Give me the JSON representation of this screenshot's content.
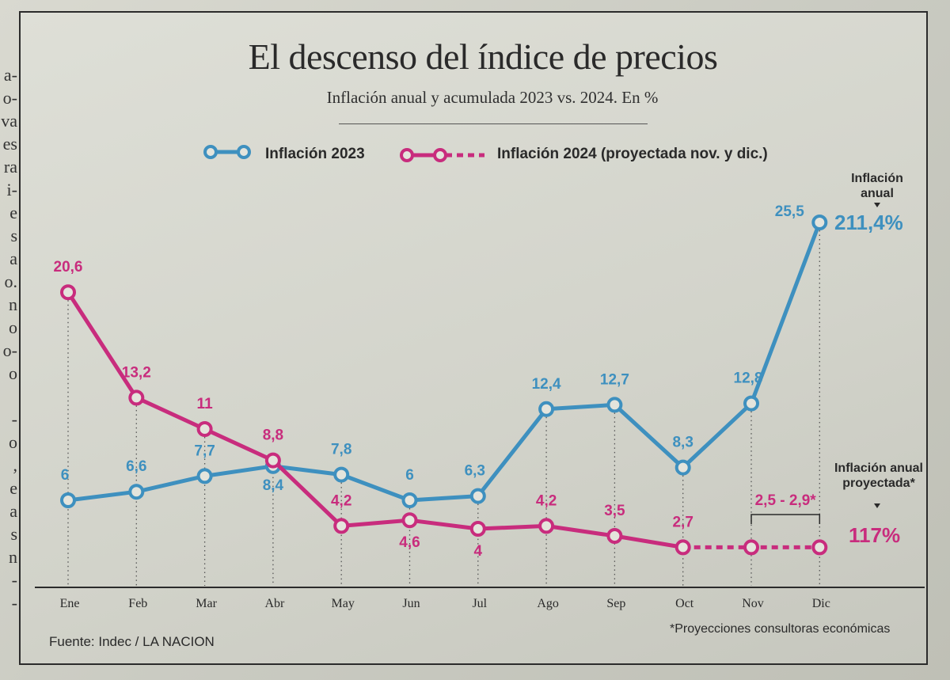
{
  "chart_data": {
    "type": "line",
    "title": "El descenso del índice de precios",
    "subtitle": "Inflación anual y acumulada  2023 vs. 2024. En %",
    "categories": [
      "Ene",
      "Feb",
      "Mar",
      "Abr",
      "May",
      "Jun",
      "Jul",
      "Ago",
      "Sep",
      "Oct",
      "Nov",
      "Dic"
    ],
    "series": [
      {
        "name": "Inflación 2023",
        "color": "#3e90bf",
        "values": [
          6,
          6.6,
          7.7,
          8.4,
          7.8,
          6,
          6.3,
          12.4,
          12.7,
          8.3,
          12.8,
          25.5
        ],
        "labels": [
          "6",
          "6,6",
          "7,7",
          "8,4",
          "7,8",
          "6",
          "6,3",
          "12,4",
          "12,7",
          "8,3",
          "12,8",
          "25,5"
        ]
      },
      {
        "name": "Inflación 2024 (proyectada nov. y dic.)",
        "color": "#c82c7d",
        "values": [
          20.6,
          13.2,
          11,
          8.8,
          4.2,
          4.6,
          4,
          4.2,
          3.5,
          2.7,
          2.7,
          2.7
        ],
        "labels": [
          "20,6",
          "13,2",
          "11",
          "8,8",
          "4,2",
          "4,6",
          "4",
          "4,2",
          "3,5",
          "2,7",
          "",
          ""
        ],
        "projected_from_index": 9
      }
    ],
    "annotations": {
      "projection_range": "2,5 - 2,9*",
      "annual_label": "Inflación anual",
      "annual_value": "211,4%",
      "projected_label": "Inflación anual proyectada*",
      "projected_value": "117%"
    },
    "ylim": [
      0,
      27
    ],
    "grid": false,
    "legend": "top"
  },
  "source": "Fuente: Indec / LA NACION",
  "footnote": "*Proyecciones consultoras económicas",
  "margin_text": "a-\no-\nva\nes\nra\ni-\ne\ns\na\no.\nn\no\no-\no\n\n-\no\n,\ne\na\ns\nn\n-\n-\ns"
}
